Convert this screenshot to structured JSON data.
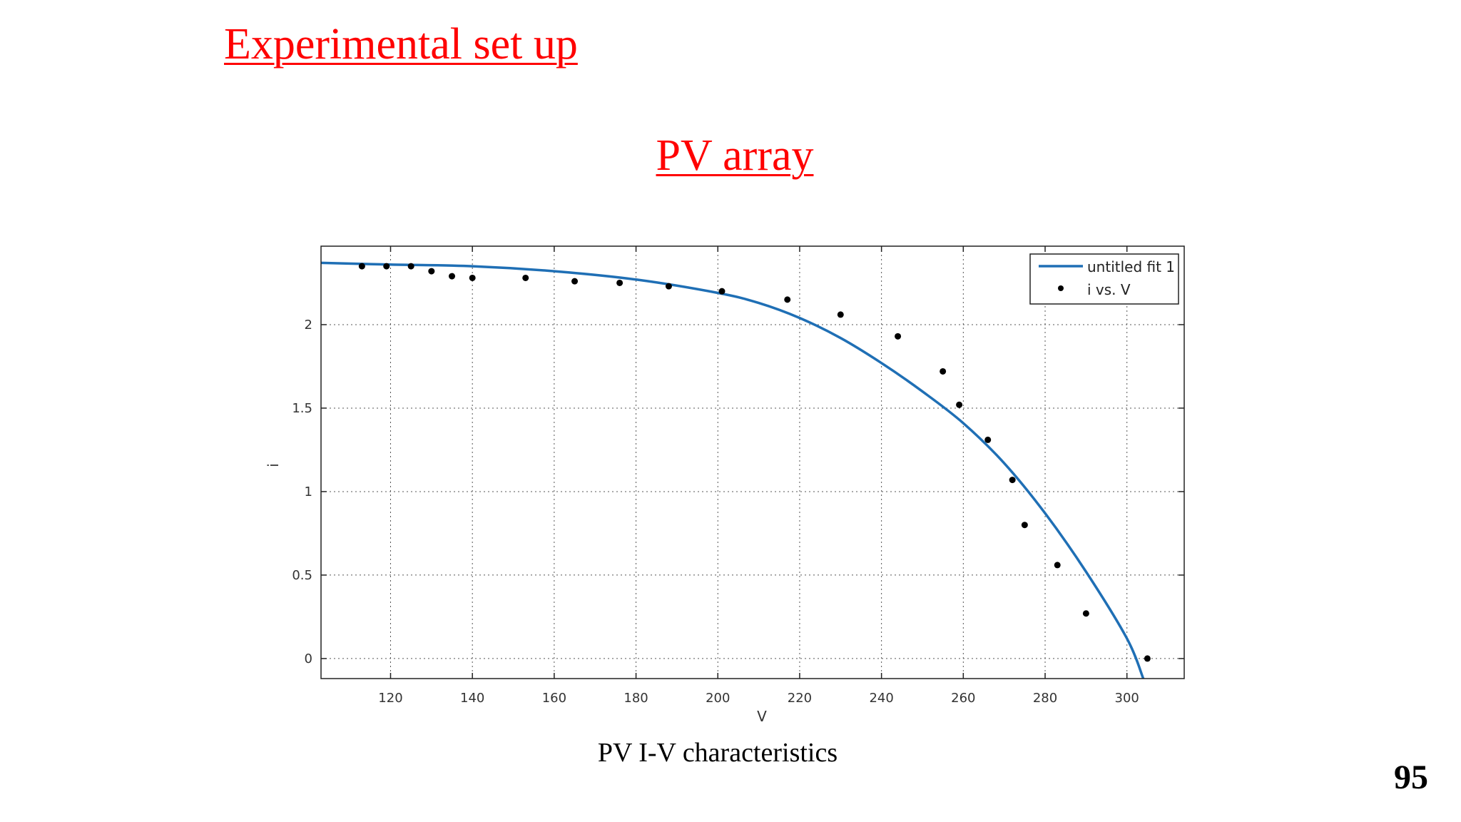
{
  "slide": {
    "title": "Experimental set up",
    "subtitle": "PV array",
    "caption": "PV I-V characteristics",
    "page_number": "95",
    "accent_color": "#ff0000"
  },
  "chart_data": {
    "type": "scatter",
    "xlabel": "V",
    "ylabel": "i",
    "xlim": [
      103,
      314
    ],
    "ylim": [
      -0.12,
      2.47
    ],
    "xticks": [
      120,
      140,
      160,
      180,
      200,
      220,
      240,
      260,
      280,
      300
    ],
    "yticks": [
      0,
      0.5,
      1,
      1.5,
      2
    ],
    "tick_labels_x": [
      "120",
      "140",
      "160",
      "180",
      "200",
      "220",
      "240",
      "260",
      "280",
      "300"
    ],
    "tick_labels_y": [
      "0",
      "0.5",
      "1",
      "1.5",
      "2"
    ],
    "grid": true,
    "legend_position": "top-right",
    "series": [
      {
        "name": "untitled fit 1",
        "kind": "line",
        "color": "#1f6fb5",
        "x": [
          103,
          120,
          140,
          160,
          180,
          200,
          210,
          220,
          230,
          240,
          250,
          260,
          270,
          280,
          290,
          300,
          304
        ],
        "y": [
          2.37,
          2.36,
          2.35,
          2.32,
          2.27,
          2.19,
          2.13,
          2.04,
          1.92,
          1.77,
          1.6,
          1.41,
          1.17,
          0.87,
          0.52,
          0.12,
          -0.12
        ]
      },
      {
        "name": "i vs. V",
        "kind": "points",
        "color": "#000000",
        "x": [
          113,
          119,
          125,
          130,
          135,
          140,
          153,
          165,
          176,
          188,
          201,
          217,
          230,
          244,
          255,
          259,
          266,
          272,
          275,
          283,
          290,
          305
        ],
        "y": [
          2.35,
          2.35,
          2.35,
          2.32,
          2.29,
          2.28,
          2.28,
          2.26,
          2.25,
          2.23,
          2.2,
          2.15,
          2.06,
          1.93,
          1.72,
          1.52,
          1.31,
          1.07,
          0.8,
          0.56,
          0.27,
          0.0
        ]
      }
    ]
  }
}
